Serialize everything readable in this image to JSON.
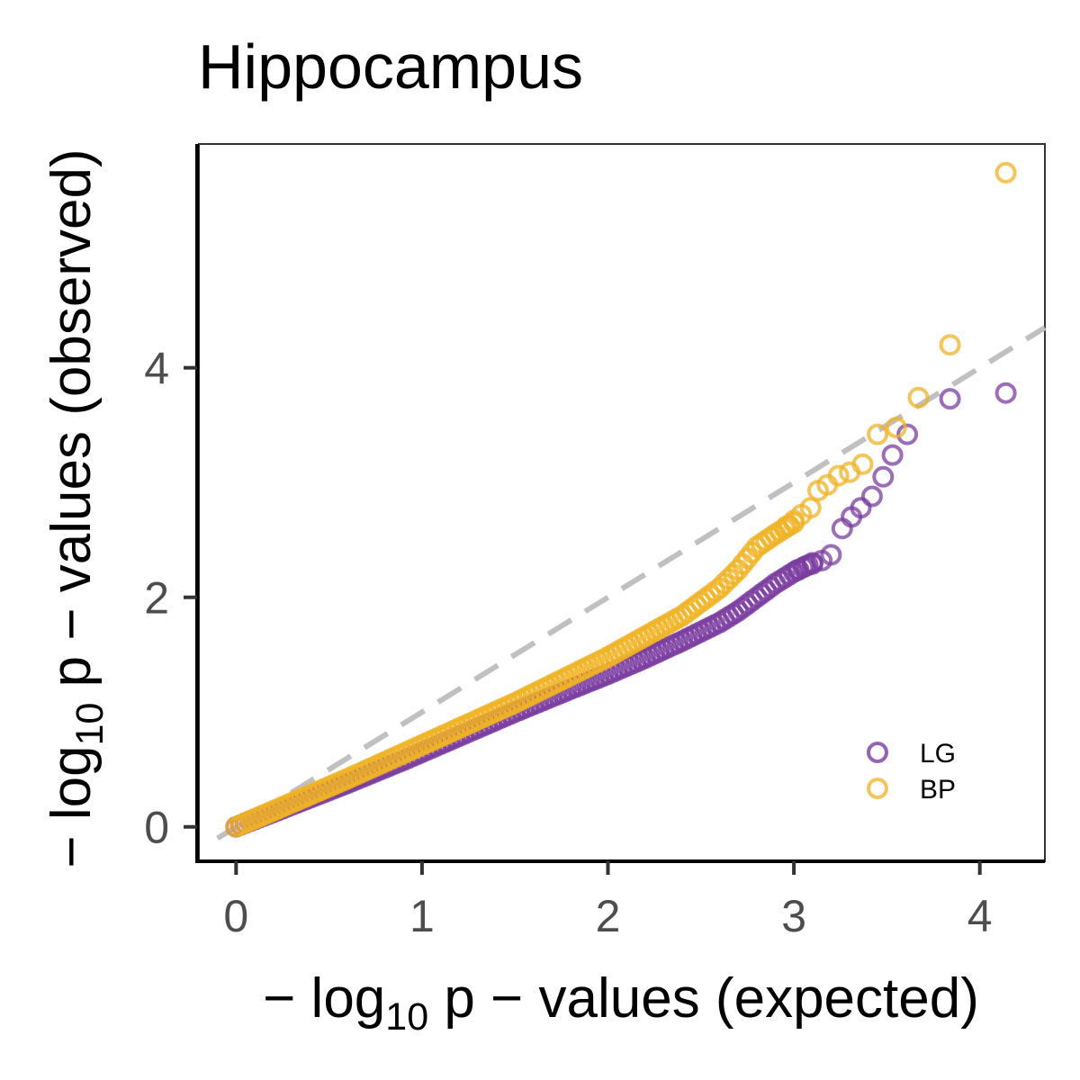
{
  "chart_data": {
    "type": "scatter",
    "title": "Hippocampus",
    "xlabel": {
      "pre": "− log",
      "sub": "10",
      "post": " p − values (expected)"
    },
    "ylabel": {
      "pre": "− log",
      "sub": "10",
      "post": " p − values (observed)"
    },
    "xlim": [
      -0.2,
      4.35
    ],
    "ylim": [
      -0.3,
      5.95
    ],
    "xticks": [
      0,
      1,
      2,
      3,
      4
    ],
    "yticks": [
      0,
      2,
      4
    ],
    "xtick_labels": [
      "0",
      "1",
      "2",
      "3",
      "4"
    ],
    "ytick_labels": [
      "0",
      "2",
      "4"
    ],
    "reference_line": {
      "style": "dashed",
      "color": "#c0c0c0",
      "from": [
        -0.1,
        -0.1
      ],
      "to": [
        4.35,
        4.35
      ]
    },
    "grid": false,
    "legend": {
      "position": "bottom-right"
    },
    "series": [
      {
        "name": "LG",
        "color": "#7b3ca0",
        "curve": [
          [
            0,
            0
          ],
          [
            0.3,
            0.19
          ],
          [
            0.6,
            0.38
          ],
          [
            0.9,
            0.58
          ],
          [
            1.2,
            0.79
          ],
          [
            1.5,
            1.0
          ],
          [
            1.8,
            1.2
          ],
          [
            2.0,
            1.33
          ],
          [
            2.2,
            1.47
          ],
          [
            2.4,
            1.62
          ],
          [
            2.6,
            1.78
          ],
          [
            2.7,
            1.88
          ],
          [
            2.8,
            2.0
          ],
          [
            2.9,
            2.12
          ],
          [
            3.0,
            2.22
          ],
          [
            3.1,
            2.3
          ]
        ],
        "tail": [
          [
            3.02,
            2.24
          ],
          [
            3.06,
            2.27
          ],
          [
            3.1,
            2.29
          ],
          [
            3.15,
            2.32
          ],
          [
            3.2,
            2.37
          ],
          [
            3.26,
            2.6
          ],
          [
            3.31,
            2.7
          ],
          [
            3.36,
            2.78
          ],
          [
            3.42,
            2.88
          ],
          [
            3.48,
            3.05
          ],
          [
            3.53,
            3.24
          ],
          [
            3.61,
            3.42
          ],
          [
            3.84,
            3.73
          ],
          [
            4.14,
            3.78
          ]
        ]
      },
      {
        "name": "BP",
        "color": "#f0b323",
        "curve": [
          [
            0,
            0
          ],
          [
            0.3,
            0.21
          ],
          [
            0.6,
            0.42
          ],
          [
            0.9,
            0.64
          ],
          [
            1.2,
            0.86
          ],
          [
            1.5,
            1.08
          ],
          [
            1.8,
            1.32
          ],
          [
            2.0,
            1.48
          ],
          [
            2.2,
            1.66
          ],
          [
            2.4,
            1.84
          ],
          [
            2.6,
            2.08
          ],
          [
            2.7,
            2.24
          ],
          [
            2.8,
            2.44
          ],
          [
            2.9,
            2.55
          ],
          [
            3.0,
            2.65
          ]
        ],
        "tail": [
          [
            2.96,
            2.62
          ],
          [
            3.0,
            2.67
          ],
          [
            3.04,
            2.72
          ],
          [
            3.09,
            2.78
          ],
          [
            3.13,
            2.93
          ],
          [
            3.18,
            2.98
          ],
          [
            3.24,
            3.06
          ],
          [
            3.3,
            3.09
          ],
          [
            3.37,
            3.16
          ],
          [
            3.45,
            3.42
          ],
          [
            3.55,
            3.48
          ],
          [
            3.67,
            3.74
          ],
          [
            3.84,
            4.2
          ],
          [
            4.14,
            5.7
          ]
        ]
      }
    ]
  }
}
